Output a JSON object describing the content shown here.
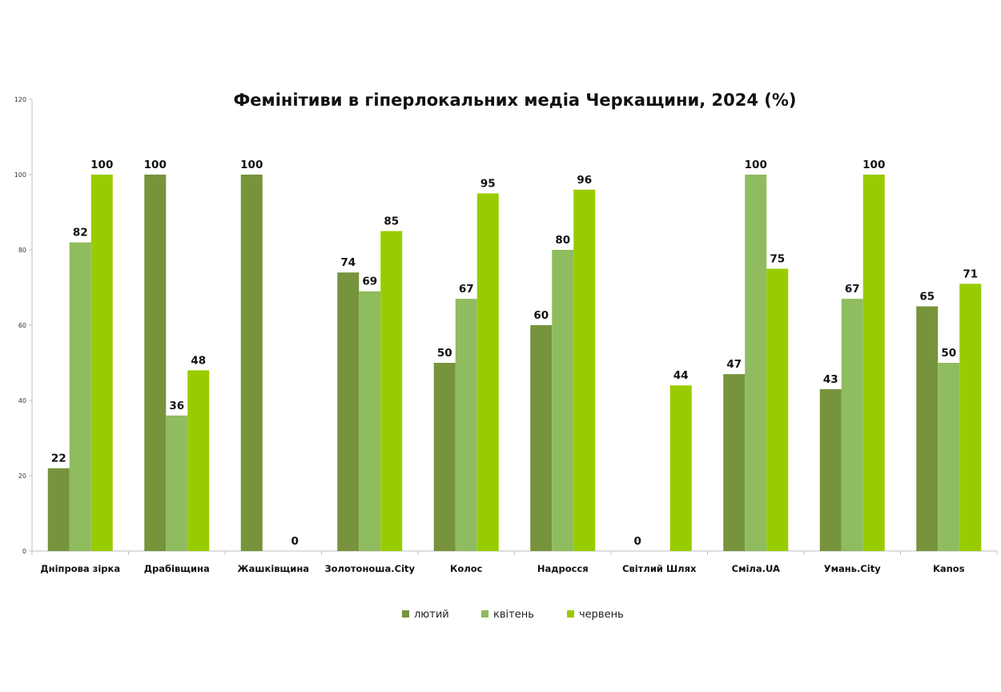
{
  "chart_data": {
    "type": "bar",
    "title": "Фемінітиви в гіперлокальних медіа Черкащини, 2024 (%)",
    "xlabel": "",
    "ylabel": "",
    "ylim": [
      0,
      120
    ],
    "yticks": [
      "0",
      "20",
      "40",
      "60",
      "80",
      "100",
      "120"
    ],
    "grid": false,
    "legend_position": "bottom",
    "categories": [
      "Дніпрова зірка",
      "Драбівщина",
      "Жашківщина",
      "Золотоноша.City",
      "Колос",
      "Надросся",
      "Світлий Шлях",
      "Сміла.UA",
      "Умань.City",
      "Kanos"
    ],
    "series": [
      {
        "name": "лютий",
        "color": "#77933c",
        "values": [
          22,
          100,
          100,
          74,
          50,
          60,
          0,
          47,
          43,
          65
        ],
        "labels": [
          "22",
          "100",
          "100",
          "74",
          "50",
          "60",
          "0",
          "47",
          "43",
          "65"
        ]
      },
      {
        "name": "квітень",
        "color": "#8fbc5f",
        "values": [
          82,
          36,
          null,
          69,
          67,
          80,
          null,
          100,
          67,
          50
        ],
        "labels": [
          "82",
          "36",
          "",
          "69",
          "67",
          "80",
          "",
          "100",
          "67",
          "50"
        ]
      },
      {
        "name": "червень",
        "color": "#99cc00",
        "values": [
          100,
          48,
          0,
          85,
          95,
          96,
          44,
          75,
          100,
          71
        ],
        "labels": [
          "100",
          "48",
          "0",
          "85",
          "95",
          "96",
          "44",
          "75",
          "100",
          "71"
        ]
      }
    ]
  }
}
